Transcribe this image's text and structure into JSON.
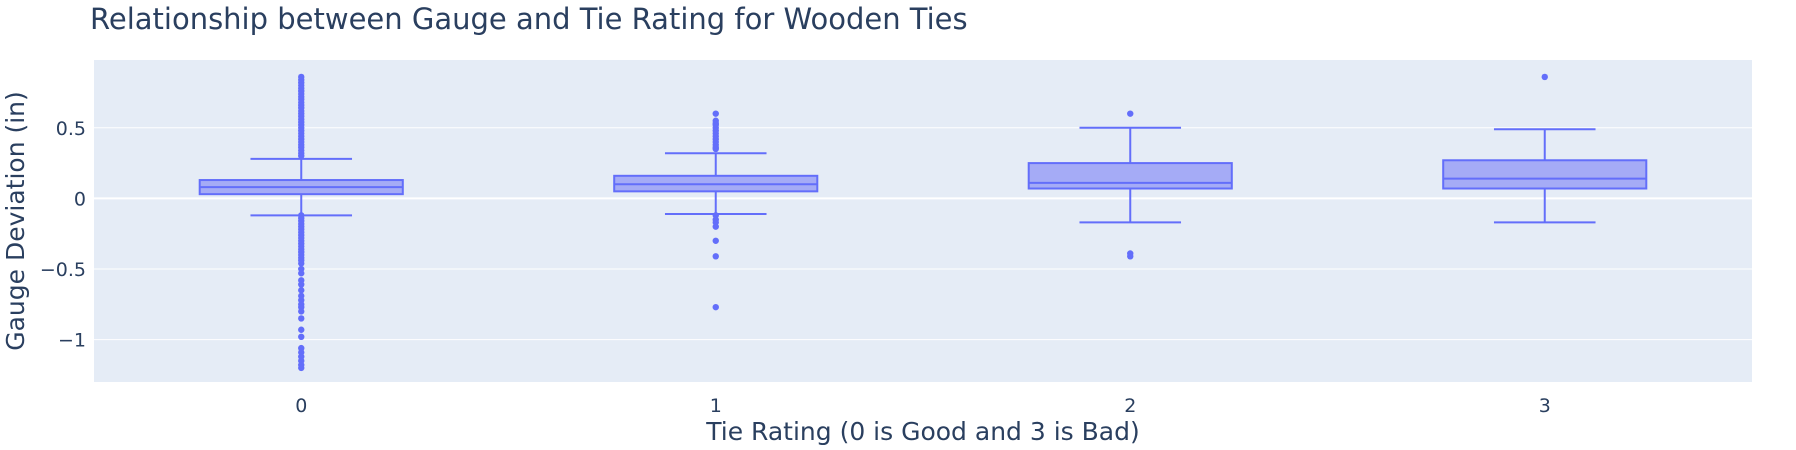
{
  "colors": {
    "plot_background": "#e5ecf6",
    "grid": "#ffffff",
    "box_line": "#636efa",
    "box_fill": "#a5abf6",
    "text": "#2a3f5f"
  },
  "chart_data": {
    "type": "box",
    "title": "Relationship between Gauge and Tie Rating for Wooden Ties",
    "xlabel": "Tie Rating (0 is Good and 3 is Bad)",
    "ylabel": "Gauge Deviation (in)",
    "categories": [
      "0",
      "1",
      "2",
      "3"
    ],
    "ylim": [
      -1.3,
      0.98
    ],
    "yticks": [
      {
        "value": 0.5,
        "label": "0.5"
      },
      {
        "value": 0,
        "label": "0"
      },
      {
        "value": -0.5,
        "label": "−0.5"
      },
      {
        "value": -1,
        "label": "−1"
      }
    ],
    "grid": true,
    "boxes": [
      {
        "category": "0",
        "lower_fence": -0.12,
        "q1": 0.03,
        "median": 0.08,
        "q3": 0.13,
        "upper_fence": 0.28,
        "outliers": [
          0.86,
          0.84,
          0.82,
          0.8,
          0.78,
          0.76,
          0.74,
          0.72,
          0.7,
          0.68,
          0.66,
          0.64,
          0.62,
          0.6,
          0.58,
          0.56,
          0.54,
          0.52,
          0.5,
          0.48,
          0.46,
          0.44,
          0.42,
          0.4,
          0.38,
          0.36,
          0.34,
          0.32,
          0.3,
          -0.12,
          -0.14,
          -0.16,
          -0.18,
          -0.2,
          -0.22,
          -0.24,
          -0.26,
          -0.28,
          -0.3,
          -0.32,
          -0.34,
          -0.36,
          -0.38,
          -0.4,
          -0.42,
          -0.44,
          -0.46,
          -0.5,
          -0.53,
          -0.58,
          -0.61,
          -0.65,
          -0.69,
          -0.72,
          -0.75,
          -0.77,
          -0.8,
          -0.85,
          -0.93,
          -0.98,
          -1.06,
          -1.09,
          -1.12,
          -1.15,
          -1.18,
          -1.2
        ]
      },
      {
        "category": "1",
        "lower_fence": -0.11,
        "q1": 0.05,
        "median": 0.1,
        "q3": 0.16,
        "upper_fence": 0.32,
        "outliers": [
          0.6,
          0.55,
          0.53,
          0.52,
          0.5,
          0.48,
          0.46,
          0.44,
          0.42,
          0.4,
          0.38,
          0.36,
          0.35,
          -0.12,
          -0.15,
          -0.17,
          -0.2,
          -0.3,
          -0.41,
          -0.77
        ]
      },
      {
        "category": "2",
        "lower_fence": -0.17,
        "q1": 0.07,
        "median": 0.11,
        "q3": 0.25,
        "upper_fence": 0.5,
        "outliers": [
          0.6,
          -0.39,
          -0.41
        ]
      },
      {
        "category": "3",
        "lower_fence": -0.17,
        "q1": 0.07,
        "median": 0.14,
        "q3": 0.27,
        "upper_fence": 0.49,
        "outliers": [
          0.86
        ]
      }
    ]
  }
}
